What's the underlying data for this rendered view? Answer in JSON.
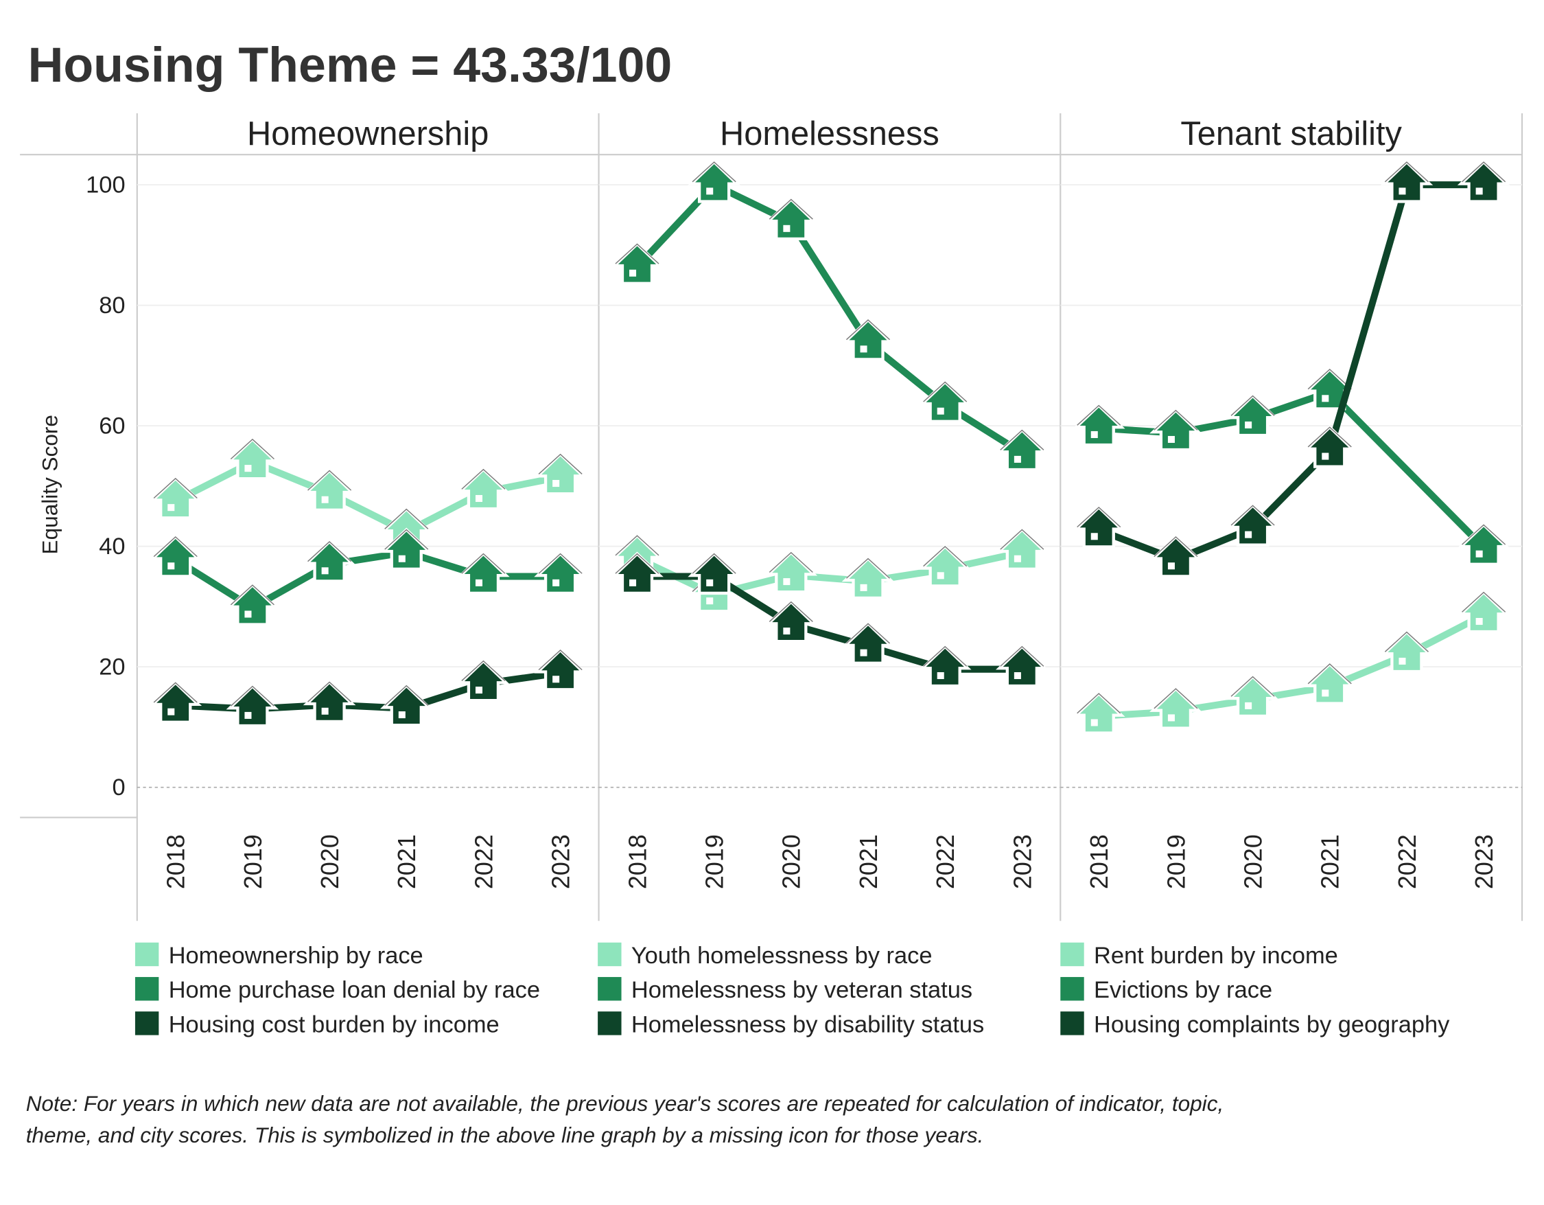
{
  "title": "Housing Theme = 43.33/100",
  "y_axis_label": "Equality Score",
  "note": [
    "Note: For years in which new data are not available, the previous year's scores are repeated for calculation of indicator, topic,",
    "theme, and city scores. This is symbolized in the above line graph by a missing icon for those years."
  ],
  "chart_data": [
    {
      "type": "line",
      "title": "Homeownership",
      "categories": [
        "2018",
        "2019",
        "2020",
        "2021",
        "2022",
        "2023"
      ],
      "ylim": [
        -5,
        105
      ],
      "yticks": [
        0,
        20,
        40,
        60,
        80,
        100
      ],
      "grid": true,
      "series": [
        {
          "name": "Homeownership by race",
          "color": "#8ee4bc",
          "values": [
            47.5,
            54,
            48.8,
            42.4,
            49,
            51.5
          ]
        },
        {
          "name": "Home purchase loan denial by race",
          "color": "#1f8a55",
          "values": [
            37.8,
            29.8,
            37,
            39,
            35,
            35
          ]
        },
        {
          "name": "Housing cost burden by income",
          "color": "#0e4429",
          "values": [
            13.6,
            13,
            13.7,
            13.1,
            17.2,
            19
          ]
        }
      ]
    },
    {
      "type": "line",
      "title": "Homelessness",
      "categories": [
        "2018",
        "2019",
        "2020",
        "2021",
        "2022",
        "2023"
      ],
      "ylim": [
        -5,
        105
      ],
      "grid": true,
      "series": [
        {
          "name": "Youth homelessness by race",
          "color": "#8ee4bc",
          "values": [
            38,
            32,
            35.2,
            34.2,
            36.2,
            39
          ]
        },
        {
          "name": "Homelessness by veteran status",
          "color": "#1f8a55",
          "values": [
            86.4,
            100,
            93.8,
            73.8,
            63.5,
            55.5
          ]
        },
        {
          "name": "Homelessness by disability status",
          "color": "#0e4429",
          "values": [
            35,
            35,
            27,
            23.4,
            19.6,
            19.6
          ]
        }
      ]
    },
    {
      "type": "line",
      "title": "Tenant stability",
      "categories": [
        "2018",
        "2019",
        "2020",
        "2021",
        "2022",
        "2023"
      ],
      "ylim": [
        -5,
        105
      ],
      "grid": true,
      "series": [
        {
          "name": "Rent burden by income",
          "color": "#8ee4bc",
          "values": [
            11.8,
            12.6,
            14.6,
            16.7,
            22,
            28.6
          ]
        },
        {
          "name": "Evictions by race",
          "color": "#1f8a55",
          "values": [
            59.6,
            58.8,
            61.2,
            65.6,
            52.7,
            39.8
          ],
          "hidden_markers": [
            4
          ]
        },
        {
          "name": "Housing complaints by geography",
          "color": "#0e4429",
          "values": [
            42.7,
            37.8,
            43,
            56,
            100,
            100
          ]
        }
      ]
    }
  ]
}
